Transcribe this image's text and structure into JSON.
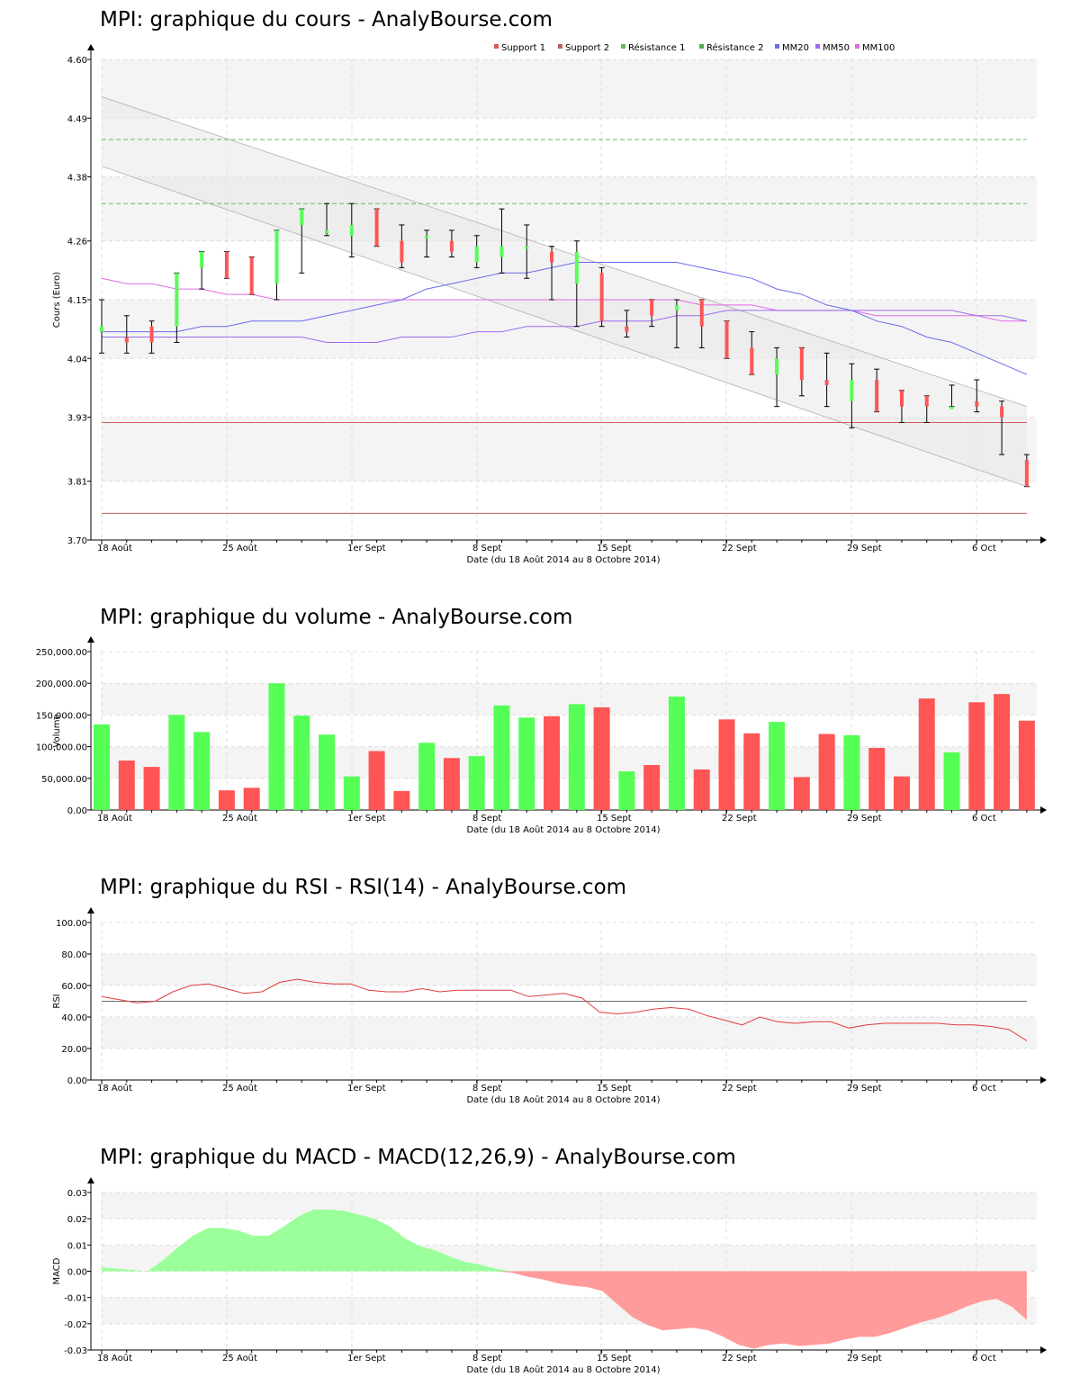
{
  "x_ticks": [
    "18 Août",
    "25 Août",
    "1er Sept",
    "8 Sept",
    "15 Sept",
    "22 Sept",
    "29 Sept",
    "6 Oct"
  ],
  "x_axis_label": "Date (du 18 Août 2014 au 8 Octobre 2014)",
  "colors": {
    "up": "#55ff55",
    "down": "#ff5555",
    "wick": "#000000",
    "support": "#d65a5a",
    "resistance": "#4caf50",
    "mm20": "#6b6bef",
    "mm50": "#9b6bef",
    "mm100": "#e26be2",
    "macd_pos": "#9bff9b",
    "macd_neg": "#ff9b9b"
  },
  "chart_data": [
    {
      "type": "candlestick",
      "title": "MPI: graphique du cours - AnalyBourse.com",
      "ylabel": "Cours (Euro)",
      "ylim": [
        3.7,
        4.6
      ],
      "y_ticks": [
        "3.70",
        "3.81",
        "3.93",
        "4.04",
        "4.15",
        "4.26",
        "4.38",
        "4.49",
        "4.60"
      ],
      "legend": [
        "Support 1",
        "Support 2",
        "Résistance 1",
        "Résistance 2",
        "MM20",
        "MM50",
        "MM100"
      ],
      "support_1": 3.92,
      "support_2": 3.75,
      "resistance_1": 4.33,
      "resistance_2": 4.45,
      "channel_upper": [
        4.53,
        3.95
      ],
      "channel_lower": [
        4.4,
        3.8
      ],
      "candles": [
        {
          "date": "18 Août",
          "open": 4.09,
          "close": 4.1,
          "high": 4.15,
          "low": 4.05
        },
        {
          "date": "19 Août",
          "open": 4.08,
          "close": 4.07,
          "high": 4.12,
          "low": 4.05
        },
        {
          "date": "20 Août",
          "open": 4.1,
          "close": 4.07,
          "high": 4.11,
          "low": 4.05
        },
        {
          "date": "21 Août",
          "open": 4.1,
          "close": 4.2,
          "high": 4.2,
          "low": 4.07
        },
        {
          "date": "22 Août",
          "open": 4.21,
          "close": 4.24,
          "high": 4.24,
          "low": 4.17
        },
        {
          "date": "25 Août",
          "open": 4.24,
          "close": 4.19,
          "high": 4.24,
          "low": 4.19
        },
        {
          "date": "26 Août",
          "open": 4.23,
          "close": 4.16,
          "high": 4.23,
          "low": 4.16
        },
        {
          "date": "27 Août",
          "open": 4.18,
          "close": 4.28,
          "high": 4.28,
          "low": 4.15
        },
        {
          "date": "28 Août",
          "open": 4.29,
          "close": 4.32,
          "high": 4.32,
          "low": 4.2
        },
        {
          "date": "29 Août",
          "open": 4.28,
          "close": 4.28,
          "high": 4.33,
          "low": 4.27
        },
        {
          "date": "1er Sept",
          "open": 4.27,
          "close": 4.29,
          "high": 4.33,
          "low": 4.23
        },
        {
          "date": "2 Sept",
          "open": 4.32,
          "close": 4.25,
          "high": 4.32,
          "low": 4.25
        },
        {
          "date": "3 Sept",
          "open": 4.26,
          "close": 4.22,
          "high": 4.29,
          "low": 4.21
        },
        {
          "date": "4 Sept",
          "open": 4.27,
          "close": 4.27,
          "high": 4.28,
          "low": 4.23
        },
        {
          "date": "5 Sept",
          "open": 4.26,
          "close": 4.24,
          "high": 4.28,
          "low": 4.23
        },
        {
          "date": "8 Sept",
          "open": 4.22,
          "close": 4.25,
          "high": 4.27,
          "low": 4.21
        },
        {
          "date": "9 Sept",
          "open": 4.23,
          "close": 4.25,
          "high": 4.32,
          "low": 4.2
        },
        {
          "date": "10 Sept",
          "open": 4.25,
          "close": 4.25,
          "high": 4.29,
          "low": 4.19
        },
        {
          "date": "11 Sept",
          "open": 4.24,
          "close": 4.22,
          "high": 4.25,
          "low": 4.15
        },
        {
          "date": "12 Sept",
          "open": 4.18,
          "close": 4.24,
          "high": 4.26,
          "low": 4.1
        },
        {
          "date": "15 Sept",
          "open": 4.2,
          "close": 4.11,
          "high": 4.21,
          "low": 4.1
        },
        {
          "date": "16 Sept",
          "open": 4.1,
          "close": 4.09,
          "high": 4.13,
          "low": 4.08
        },
        {
          "date": "17 Sept",
          "open": 4.15,
          "close": 4.12,
          "high": 4.15,
          "low": 4.1
        },
        {
          "date": "18 Sept",
          "open": 4.13,
          "close": 4.14,
          "high": 4.15,
          "low": 4.06
        },
        {
          "date": "19 Sept",
          "open": 4.15,
          "close": 4.1,
          "high": 4.15,
          "low": 4.06
        },
        {
          "date": "22 Sept",
          "open": 4.11,
          "close": 4.04,
          "high": 4.11,
          "low": 4.04
        },
        {
          "date": "23 Sept",
          "open": 4.06,
          "close": 4.01,
          "high": 4.09,
          "low": 4.01
        },
        {
          "date": "24 Sept",
          "open": 4.01,
          "close": 4.04,
          "high": 4.06,
          "low": 3.95
        },
        {
          "date": "25 Sept",
          "open": 4.06,
          "close": 4.0,
          "high": 4.06,
          "low": 3.97
        },
        {
          "date": "26 Sept",
          "open": 4.0,
          "close": 3.99,
          "high": 4.05,
          "low": 3.95
        },
        {
          "date": "29 Sept",
          "open": 3.96,
          "close": 4.0,
          "high": 4.03,
          "low": 3.91
        },
        {
          "date": "30 Sept",
          "open": 4.0,
          "close": 3.94,
          "high": 4.02,
          "low": 3.94
        },
        {
          "date": "1er Oct",
          "open": 3.98,
          "close": 3.95,
          "high": 3.98,
          "low": 3.92
        },
        {
          "date": "2 Oct",
          "open": 3.97,
          "close": 3.95,
          "high": 3.97,
          "low": 3.92
        },
        {
          "date": "3 Oct",
          "open": 3.95,
          "close": 3.95,
          "high": 3.99,
          "low": 3.95
        },
        {
          "date": "6 Oct",
          "open": 3.96,
          "close": 3.95,
          "high": 4.0,
          "low": 3.94
        },
        {
          "date": "7 Oct",
          "open": 3.95,
          "close": 3.93,
          "high": 3.96,
          "low": 3.86
        },
        {
          "date": "8 Oct",
          "open": 3.85,
          "close": 3.8,
          "high": 3.86,
          "low": 3.8
        }
      ],
      "mm20": [
        4.09,
        4.09,
        4.09,
        4.09,
        4.1,
        4.1,
        4.11,
        4.11,
        4.11,
        4.12,
        4.13,
        4.14,
        4.15,
        4.17,
        4.18,
        4.19,
        4.2,
        4.2,
        4.21,
        4.22,
        4.22,
        4.22,
        4.22,
        4.22,
        4.21,
        4.2,
        4.19,
        4.17,
        4.16,
        4.14,
        4.13,
        4.11,
        4.1,
        4.08,
        4.07,
        4.05,
        4.03,
        4.01
      ],
      "mm50": [
        4.08,
        4.08,
        4.08,
        4.08,
        4.08,
        4.08,
        4.08,
        4.08,
        4.08,
        4.07,
        4.07,
        4.07,
        4.08,
        4.08,
        4.08,
        4.09,
        4.09,
        4.1,
        4.1,
        4.1,
        4.11,
        4.11,
        4.11,
        4.12,
        4.12,
        4.13,
        4.13,
        4.13,
        4.13,
        4.13,
        4.13,
        4.13,
        4.13,
        4.13,
        4.13,
        4.12,
        4.12,
        4.11
      ],
      "mm100": [
        4.19,
        4.18,
        4.18,
        4.17,
        4.17,
        4.16,
        4.16,
        4.15,
        4.15,
        4.15,
        4.15,
        4.15,
        4.15,
        4.15,
        4.15,
        4.15,
        4.15,
        4.15,
        4.15,
        4.15,
        4.15,
        4.15,
        4.15,
        4.15,
        4.14,
        4.14,
        4.14,
        4.13,
        4.13,
        4.13,
        4.13,
        4.12,
        4.12,
        4.12,
        4.12,
        4.12,
        4.11,
        4.11
      ]
    },
    {
      "type": "bar",
      "title": "MPI: graphique du volume - AnalyBourse.com",
      "ylabel": "Volume",
      "ylim": [
        0,
        250000
      ],
      "y_ticks": [
        "0.00",
        "50,000.00",
        "100,000.00",
        "150,000.00",
        "200,000.00",
        "250,000.00"
      ],
      "values": [
        135000,
        78000,
        68000,
        150000,
        123000,
        31000,
        35000,
        200000,
        149000,
        119000,
        53000,
        93000,
        30000,
        106000,
        82000,
        85000,
        165000,
        146000,
        148000,
        167000,
        162000,
        61000,
        71000,
        179000,
        64000,
        143000,
        121000,
        139000,
        52000,
        120000,
        118000,
        98000,
        53000,
        176000,
        91000,
        170000,
        183000,
        141000
      ],
      "up": [
        true,
        false,
        false,
        true,
        true,
        false,
        false,
        true,
        true,
        true,
        true,
        false,
        false,
        true,
        false,
        true,
        true,
        true,
        false,
        true,
        false,
        true,
        false,
        true,
        false,
        false,
        false,
        true,
        false,
        false,
        true,
        false,
        false,
        false,
        true,
        false,
        false,
        false
      ]
    },
    {
      "type": "line",
      "title": "MPI: graphique du RSI - RSI(14) - AnalyBourse.com",
      "ylabel": "RSI",
      "ylim": [
        0,
        100
      ],
      "y_ticks": [
        "0.00",
        "20.00",
        "40.00",
        "60.00",
        "80.00",
        "100.00"
      ],
      "reference": 50,
      "values": [
        53,
        51,
        49,
        50,
        56,
        60,
        61,
        58,
        55,
        56,
        62,
        64,
        62,
        61,
        61,
        57,
        56,
        56,
        58,
        56,
        57,
        57,
        57,
        57,
        53,
        54,
        55,
        52,
        43,
        42,
        43,
        45,
        46,
        45,
        41,
        38,
        35,
        40,
        37,
        36,
        37,
        37,
        33,
        35,
        36,
        36,
        36,
        36,
        35,
        35,
        34,
        32,
        25
      ]
    },
    {
      "type": "area",
      "title": "MPI: graphique du MACD - MACD(12,26,9) - AnalyBourse.com",
      "ylabel": "MACD",
      "ylim": [
        -0.03,
        0.03
      ],
      "y_ticks": [
        "-0.03",
        "-0.02",
        "-0.01",
        "0.00",
        "0.01",
        "0.02",
        "0.03"
      ],
      "values": [
        0.0015,
        0.001,
        0.0005,
        0.0,
        0.004,
        0.009,
        0.0135,
        0.0165,
        0.0165,
        0.0155,
        0.0135,
        0.0135,
        0.017,
        0.021,
        0.0235,
        0.0235,
        0.023,
        0.0215,
        0.02,
        0.017,
        0.0125,
        0.0095,
        0.008,
        0.0055,
        0.0035,
        0.0025,
        0.001,
        -0.0005,
        -0.002,
        -0.003,
        -0.0045,
        -0.0055,
        -0.006,
        -0.0075,
        -0.0125,
        -0.0175,
        -0.0205,
        -0.0225,
        -0.022,
        -0.0215,
        -0.0225,
        -0.025,
        -0.028,
        -0.0295,
        -0.028,
        -0.0275,
        -0.0285,
        -0.028,
        -0.0275,
        -0.026,
        -0.025,
        -0.025,
        -0.0235,
        -0.0215,
        -0.0195,
        -0.018,
        -0.016,
        -0.0135,
        -0.0115,
        -0.0105,
        -0.0135,
        -0.0185
      ]
    }
  ]
}
